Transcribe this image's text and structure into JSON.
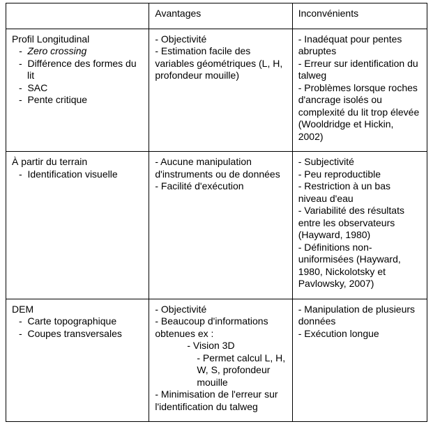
{
  "header": {
    "col1": "",
    "col2": "Avantages",
    "col3": "Inconvénients"
  },
  "rows": [
    {
      "method_title": "Profil Longitudinal",
      "method_items": [
        {
          "text": "Zero crossing",
          "italic": true
        },
        {
          "text": "Différence des formes du lit",
          "italic": false
        },
        {
          "text": "SAC",
          "italic": false
        },
        {
          "text": "Pente critique",
          "italic": false
        }
      ],
      "advantages": [
        "- Objectivité",
        "- Estimation facile des variables géométriques (L, H, profondeur mouille)"
      ],
      "disadvantages": [
        "- Inadéquat pour pentes abruptes",
        "- Erreur sur identification du talweg",
        "- Problèmes lorsque roches d'ancrage isolés ou complexité du lit trop élevée (Wooldridge et Hickin, 2002)"
      ]
    },
    {
      "method_title": "À partir du terrain",
      "method_items": [
        {
          "text": "Identification visuelle",
          "italic": false
        }
      ],
      "advantages": [
        "- Aucune manipulation d'instruments ou de données",
        "- Facilité d'exécution"
      ],
      "disadvantages": [
        "- Subjectivité",
        "- Peu reproductible",
        "- Restriction à un bas niveau d'eau",
        "- Variabilité des résultats entre les observateurs (Hayward, 1980)",
        "- Définitions non-uniformisées (Hayward, 1980, Nickolotsky et Pavlowsky, 2007)"
      ]
    },
    {
      "method_title": "DEM",
      "method_items": [
        {
          "text": "Carte topographique",
          "italic": false
        },
        {
          "text": "Coupes transversales",
          "italic": false
        }
      ],
      "advantages": [
        "- Objectivité",
        "- Beaucoup d'informations obtenues ex :",
        "    - Vision 3D",
        "      - Permet calcul L, H, W, S, profondeur mouille",
        "- Minimisation de l'erreur sur l'identification du talweg"
      ],
      "disadvantages": [
        "- Manipulation de plusieurs données",
        "- Exécution longue"
      ]
    }
  ],
  "style": {
    "font_family": "Arial",
    "font_size_pt": 11,
    "border_color": "#000000",
    "background_color": "#ffffff",
    "text_color": "#000000",
    "bullet_glyph": "-"
  }
}
